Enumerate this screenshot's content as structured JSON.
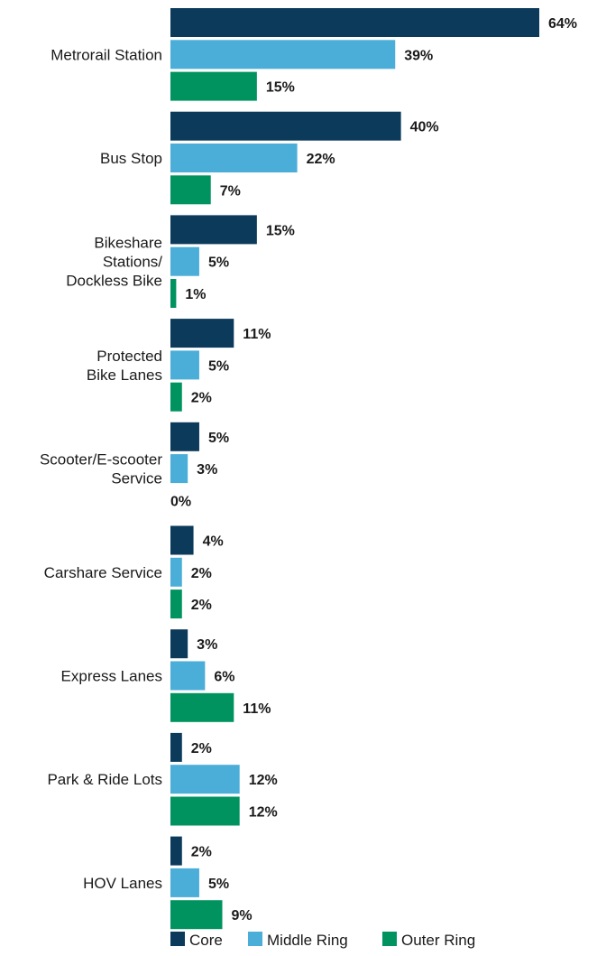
{
  "chart_data": {
    "type": "bar",
    "orientation": "horizontal",
    "categories": [
      "Metrorail Station",
      "Bus Stop",
      "Bikeshare Stations/ Dockless Bike",
      "Protected Bike Lanes",
      "Scooter/E-scooter Service",
      "Carshare Service",
      "Express Lanes",
      "Park & Ride Lots",
      "HOV Lanes"
    ],
    "category_lines": [
      [
        "Metrorail Station"
      ],
      [
        "Bus Stop"
      ],
      [
        "Bikeshare",
        "Stations/",
        "Dockless Bike"
      ],
      [
        "Protected",
        "Bike Lanes"
      ],
      [
        "Scooter/E-scooter",
        "Service"
      ],
      [
        "Carshare Service"
      ],
      [
        "Express Lanes"
      ],
      [
        "Park & Ride Lots"
      ],
      [
        "HOV Lanes"
      ]
    ],
    "series": [
      {
        "name": "Core",
        "color": "#0b3a5b",
        "values": [
          64,
          40,
          15,
          11,
          5,
          4,
          3,
          2,
          2
        ]
      },
      {
        "name": "Middle Ring",
        "color": "#4aaed8",
        "values": [
          39,
          22,
          5,
          5,
          3,
          2,
          6,
          12,
          5
        ]
      },
      {
        "name": "Outer Ring",
        "color": "#00935f",
        "values": [
          15,
          7,
          1,
          2,
          0,
          2,
          11,
          12,
          9
        ]
      }
    ],
    "value_suffix": "%",
    "xlim": [
      0,
      64
    ],
    "grid": false,
    "legend_position": "bottom"
  }
}
